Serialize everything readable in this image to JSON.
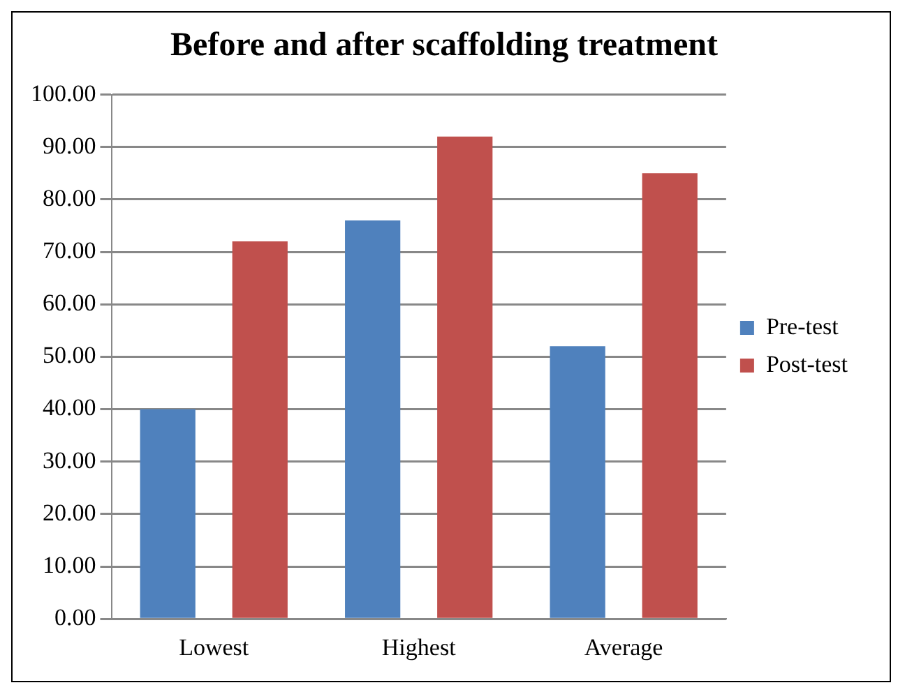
{
  "chart_data": {
    "type": "bar",
    "title": "Before and after scaffolding treatment",
    "categories": [
      "Lowest",
      "Highest",
      "Average"
    ],
    "series": [
      {
        "name": "Pre-test",
        "color": "#4f81bd",
        "values": [
          40,
          76,
          52
        ]
      },
      {
        "name": "Post-test",
        "color": "#c0504d",
        "values": [
          72,
          92,
          85
        ]
      }
    ],
    "ylim": [
      0,
      100
    ],
    "yticks": [
      {
        "value": 0,
        "label": "0.00"
      },
      {
        "value": 10,
        "label": "10.00"
      },
      {
        "value": 20,
        "label": "20.00"
      },
      {
        "value": 30,
        "label": "30.00"
      },
      {
        "value": 40,
        "label": "40.00"
      },
      {
        "value": 50,
        "label": "50.00"
      },
      {
        "value": 60,
        "label": "60.00"
      },
      {
        "value": 70,
        "label": "70.00"
      },
      {
        "value": 80,
        "label": "80.00"
      },
      {
        "value": 90,
        "label": "90.00"
      },
      {
        "value": 100,
        "label": "100.00"
      }
    ],
    "grid": "y",
    "legend": "right"
  }
}
